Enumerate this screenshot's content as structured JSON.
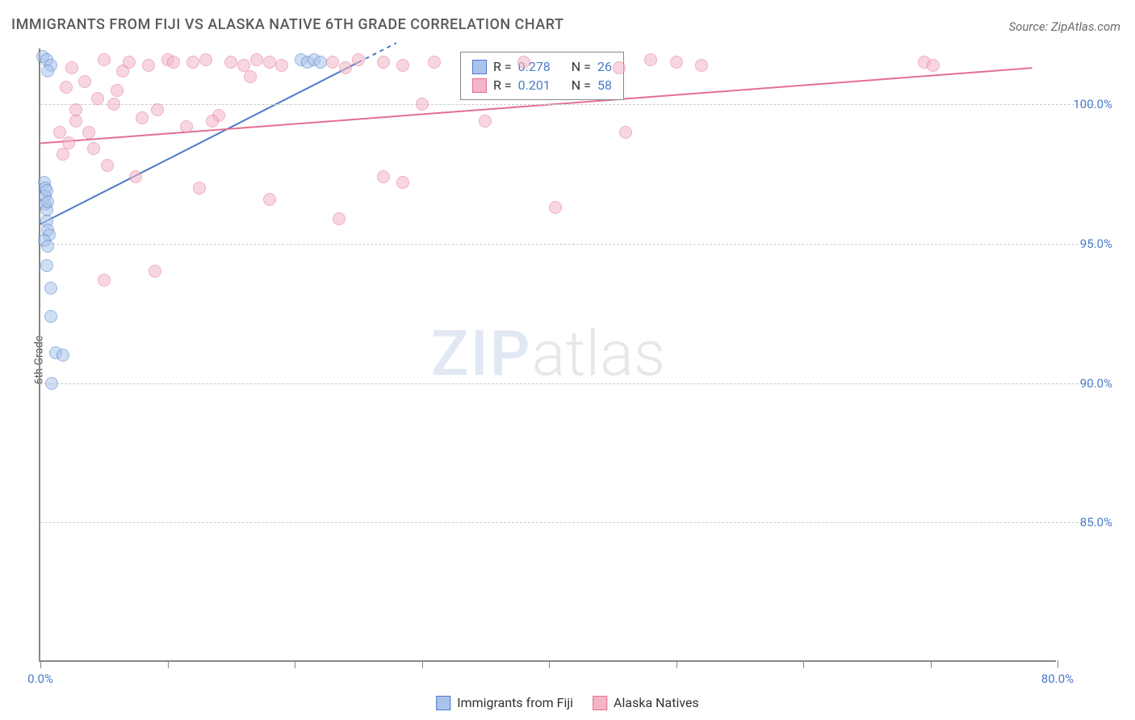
{
  "title": "IMMIGRANTS FROM FIJI VS ALASKA NATIVE 6TH GRADE CORRELATION CHART",
  "source_label": "Source: ",
  "source_value": "ZipAtlas.com",
  "ylabel": "6th Grade",
  "watermark_part1": "ZIP",
  "watermark_part2": "atlas",
  "chart": {
    "type": "scatter",
    "background_color": "#ffffff",
    "grid_color": "#cccccc",
    "axis_color": "#888888",
    "tick_label_color": "#4a7bc8",
    "xlim": [
      0,
      80
    ],
    "ylim": [
      80,
      102
    ],
    "xticks": [
      0,
      10,
      20,
      30,
      40,
      50,
      60,
      70,
      80
    ],
    "xtick_labels": [
      "0.0%",
      "",
      "",
      "",
      "",
      "",
      "",
      "",
      "80.0%"
    ],
    "yticks": [
      85,
      90,
      95,
      100
    ],
    "ytick_labels": [
      "85.0%",
      "90.0%",
      "95.0%",
      "100.0%"
    ],
    "marker_radius": 8,
    "marker_opacity": 0.55,
    "line_width": 2,
    "series": [
      {
        "name": "Immigrants from Fiji",
        "color_stroke": "#4a7bc8",
        "color_fill": "#a9c4eb",
        "R": "0.278",
        "N": "26",
        "trend": {
          "x1": 0,
          "y1": 95.7,
          "x2": 25,
          "y2": 101.5,
          "extend_dash_to_x": 28
        },
        "points": [
          [
            0.2,
            101.7
          ],
          [
            0.5,
            101.6
          ],
          [
            0.8,
            101.4
          ],
          [
            0.6,
            101.2
          ],
          [
            0.3,
            97.2
          ],
          [
            0.4,
            97.0
          ],
          [
            0.35,
            96.7
          ],
          [
            0.4,
            96.4
          ],
          [
            0.5,
            96.2
          ],
          [
            0.5,
            96.9
          ],
          [
            0.6,
            96.5
          ],
          [
            0.5,
            95.8
          ],
          [
            0.6,
            95.5
          ],
          [
            0.7,
            95.3
          ],
          [
            0.3,
            95.1
          ],
          [
            0.6,
            94.9
          ],
          [
            0.5,
            94.2
          ],
          [
            0.8,
            93.4
          ],
          [
            0.8,
            92.4
          ],
          [
            1.2,
            91.1
          ],
          [
            1.8,
            91.0
          ],
          [
            0.9,
            90.0
          ],
          [
            20.5,
            101.6
          ],
          [
            21.0,
            101.5
          ],
          [
            21.5,
            101.6
          ],
          [
            22.0,
            101.5
          ]
        ]
      },
      {
        "name": "Alaska Natives",
        "color_stroke": "#e36f91",
        "color_fill": "#f4b6c7",
        "R": "0.201",
        "N": "58",
        "trend": {
          "x1": 0,
          "y1": 98.6,
          "x2": 78,
          "y2": 101.3
        },
        "points": [
          [
            1.5,
            99.0
          ],
          [
            2.2,
            98.6
          ],
          [
            2.8,
            99.4
          ],
          [
            3.5,
            100.8
          ],
          [
            4.5,
            100.2
          ],
          [
            5.0,
            101.6
          ],
          [
            5.8,
            100.0
          ],
          [
            6.5,
            101.2
          ],
          [
            7.0,
            101.5
          ],
          [
            8.0,
            99.5
          ],
          [
            8.5,
            101.4
          ],
          [
            9.2,
            99.8
          ],
          [
            10.0,
            101.6
          ],
          [
            10.5,
            101.5
          ],
          [
            11.5,
            99.2
          ],
          [
            12.0,
            101.5
          ],
          [
            13.0,
            101.6
          ],
          [
            14.0,
            99.6
          ],
          [
            15.0,
            101.5
          ],
          [
            16.0,
            101.4
          ],
          [
            17.0,
            101.6
          ],
          [
            18.0,
            101.5
          ],
          [
            19.0,
            101.4
          ],
          [
            23.0,
            101.5
          ],
          [
            24.0,
            101.3
          ],
          [
            25.0,
            101.6
          ],
          [
            27.0,
            101.5
          ],
          [
            28.5,
            101.4
          ],
          [
            30.0,
            100.0
          ],
          [
            35.0,
            99.4
          ],
          [
            38.0,
            101.5
          ],
          [
            45.5,
            101.3
          ],
          [
            48.0,
            101.6
          ],
          [
            50.0,
            101.5
          ],
          [
            52.0,
            101.4
          ],
          [
            69.5,
            101.5
          ],
          [
            70.2,
            101.4
          ],
          [
            1.8,
            98.2
          ],
          [
            2.0,
            100.6
          ],
          [
            2.5,
            101.3
          ],
          [
            5.3,
            97.8
          ],
          [
            7.5,
            97.4
          ],
          [
            12.5,
            97.0
          ],
          [
            18.0,
            96.6
          ],
          [
            9.0,
            94.0
          ],
          [
            5.0,
            93.7
          ],
          [
            23.5,
            95.9
          ],
          [
            27.0,
            97.4
          ],
          [
            28.5,
            97.2
          ],
          [
            40.5,
            96.3
          ],
          [
            46.0,
            99.0
          ],
          [
            2.8,
            99.8
          ],
          [
            3.8,
            99.0
          ],
          [
            6.0,
            100.5
          ],
          [
            4.2,
            98.4
          ],
          [
            13.5,
            99.4
          ],
          [
            16.5,
            101.0
          ],
          [
            31.0,
            101.5
          ]
        ]
      }
    ]
  },
  "legend": {
    "R_label": "R =",
    "N_label": "N ="
  },
  "bottom_legend": [
    {
      "label": "Immigrants from Fiji",
      "swatch_fill": "#a9c4eb",
      "swatch_stroke": "#4a7bc8"
    },
    {
      "label": "Alaska Natives",
      "swatch_fill": "#f4b6c7",
      "swatch_stroke": "#e36f91"
    }
  ]
}
